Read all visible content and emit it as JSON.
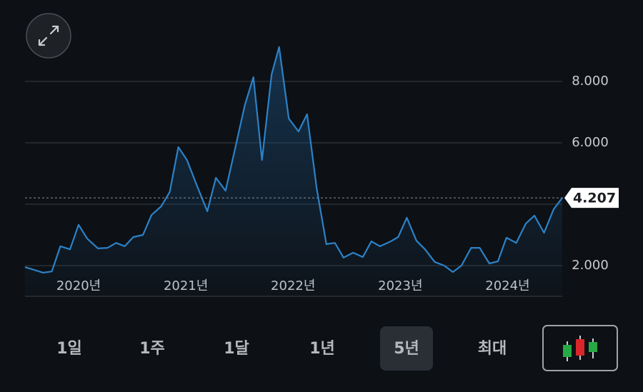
{
  "chart_data": {
    "type": "line",
    "x": [
      2019.5,
      2019.67,
      2019.75,
      2019.83,
      2019.92,
      2020.0,
      2020.08,
      2020.18,
      2020.27,
      2020.35,
      2020.43,
      2020.51,
      2020.6,
      2020.68,
      2020.77,
      2020.85,
      2020.93,
      2021.01,
      2021.1,
      2021.2,
      2021.28,
      2021.37,
      2021.45,
      2021.55,
      2021.63,
      2021.71,
      2021.8,
      2021.87,
      2021.96,
      2022.05,
      2022.13,
      2022.22,
      2022.31,
      2022.39,
      2022.47,
      2022.56,
      2022.65,
      2022.73,
      2022.81,
      2022.9,
      2022.98,
      2023.06,
      2023.15,
      2023.23,
      2023.32,
      2023.41,
      2023.49,
      2023.57,
      2023.66,
      2023.74,
      2023.83,
      2023.91,
      2023.99,
      2024.08,
      2024.17,
      2024.25,
      2024.34,
      2024.43,
      2024.51
    ],
    "series": [
      {
        "color": "#2b82c8",
        "values": [
          1.95,
          1.77,
          1.81,
          2.63,
          2.53,
          3.33,
          2.88,
          2.56,
          2.58,
          2.74,
          2.63,
          2.93,
          3.0,
          3.65,
          3.93,
          4.4,
          5.86,
          5.44,
          4.63,
          3.77,
          4.86,
          4.44,
          5.67,
          7.23,
          8.14,
          5.44,
          8.23,
          9.12,
          6.79,
          6.37,
          6.93,
          4.51,
          2.7,
          2.74,
          2.26,
          2.42,
          2.28,
          2.79,
          2.63,
          2.77,
          2.93,
          3.56,
          2.81,
          2.53,
          2.12,
          2.0,
          1.79,
          2.0,
          2.58,
          2.58,
          2.07,
          2.14,
          2.91,
          2.74,
          3.37,
          3.63,
          3.07,
          3.84,
          4.207
        ]
      }
    ],
    "xlim": [
      2019.5,
      2024.51
    ],
    "xticks": [
      {
        "value": 2020,
        "label": "2020년"
      },
      {
        "value": 2021,
        "label": "2021년"
      },
      {
        "value": 2022,
        "label": "2022년"
      },
      {
        "value": 2023,
        "label": "2023년"
      },
      {
        "value": 2024,
        "label": "2024년"
      }
    ],
    "ylim": [
      1,
      10
    ],
    "yticks": [
      {
        "value": 2,
        "label": "2.000"
      },
      {
        "value": 6,
        "label": "6.000"
      },
      {
        "value": 8,
        "label": "8.000"
      }
    ],
    "gridlines": [
      2,
      4,
      6,
      8
    ],
    "last_value": 4.207
  },
  "range_buttons": [
    {
      "label": "1일"
    },
    {
      "label": "1주"
    },
    {
      "label": "1달"
    },
    {
      "label": "1년"
    },
    {
      "label": "5년",
      "selected": true
    },
    {
      "label": "최대"
    }
  ]
}
